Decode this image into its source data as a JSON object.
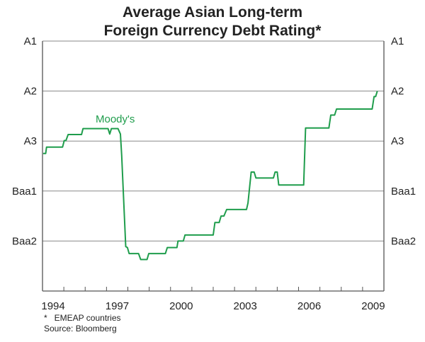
{
  "chart_data": {
    "type": "line",
    "title": [
      "Average Asian Long-term",
      "Foreign Currency Debt Rating*"
    ],
    "xlabel": "",
    "ylabel": "",
    "xlim": [
      1994,
      2010
    ],
    "x_ticks": [
      1994,
      1997,
      2000,
      2003,
      2006,
      2009
    ],
    "y_scale_note": "rating notches, 1 = A1 (top) increasing downward",
    "ylim": [
      1,
      6
    ],
    "y_ticks": [
      {
        "value": 1,
        "label": "A1"
      },
      {
        "value": 2,
        "label": "A2"
      },
      {
        "value": 3,
        "label": "A3"
      },
      {
        "value": 4,
        "label": "Baa1"
      },
      {
        "value": 5,
        "label": "Baa2"
      }
    ],
    "grid": true,
    "series": [
      {
        "name": "Moody's",
        "color": "#1f9d4c",
        "points": [
          [
            1994.03,
            3.25
          ],
          [
            1994.15,
            3.25
          ],
          [
            1994.19,
            3.12
          ],
          [
            1994.94,
            3.12
          ],
          [
            1995.02,
            2.99
          ],
          [
            1995.1,
            2.99
          ],
          [
            1995.2,
            2.87
          ],
          [
            1995.83,
            2.87
          ],
          [
            1995.9,
            2.75
          ],
          [
            1997.07,
            2.75
          ],
          [
            1997.15,
            2.86
          ],
          [
            1997.23,
            2.75
          ],
          [
            1997.54,
            2.75
          ],
          [
            1997.65,
            2.86
          ],
          [
            1997.71,
            3.29
          ],
          [
            1997.9,
            5.11
          ],
          [
            1997.98,
            5.13
          ],
          [
            1998.06,
            5.25
          ],
          [
            1998.5,
            5.25
          ],
          [
            1998.6,
            5.37
          ],
          [
            1998.9,
            5.37
          ],
          [
            1998.98,
            5.25
          ],
          [
            1999.76,
            5.25
          ],
          [
            1999.85,
            5.13
          ],
          [
            2000.3,
            5.13
          ],
          [
            2000.35,
            5.0
          ],
          [
            2000.6,
            5.0
          ],
          [
            2000.68,
            4.88
          ],
          [
            2002.0,
            4.88
          ],
          [
            2002.08,
            4.63
          ],
          [
            2002.28,
            4.63
          ],
          [
            2002.37,
            4.5
          ],
          [
            2002.5,
            4.5
          ],
          [
            2002.63,
            4.37
          ],
          [
            2003.56,
            4.37
          ],
          [
            2003.63,
            4.24
          ],
          [
            2003.78,
            3.62
          ],
          [
            2003.92,
            3.62
          ],
          [
            2004.0,
            3.74
          ],
          [
            2004.82,
            3.74
          ],
          [
            2004.9,
            3.62
          ],
          [
            2005.0,
            3.62
          ],
          [
            2005.07,
            3.88
          ],
          [
            2006.24,
            3.88
          ],
          [
            2006.33,
            2.74
          ],
          [
            2007.42,
            2.74
          ],
          [
            2007.51,
            2.48
          ],
          [
            2007.69,
            2.48
          ],
          [
            2007.78,
            2.36
          ],
          [
            2009.45,
            2.36
          ],
          [
            2009.54,
            2.11
          ],
          [
            2009.61,
            2.11
          ],
          [
            2009.69,
            2.0
          ]
        ]
      }
    ],
    "legend": "inline label above line near 1997",
    "footnotes": [
      "*   EMEAP countries",
      "Source: Bloomberg"
    ]
  }
}
